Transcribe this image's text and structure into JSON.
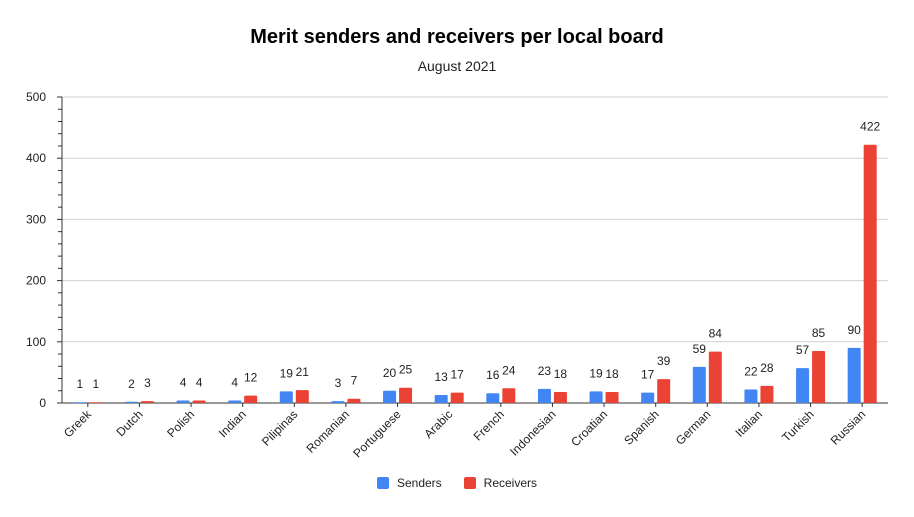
{
  "chart_data": {
    "type": "bar",
    "title": "Merit senders and receivers per local board",
    "subtitle": "August 2021",
    "categories": [
      "Greek",
      "Dutch",
      "Polish",
      "Indian",
      "Pilipinas",
      "Romanian",
      "Portuguese",
      "Arabic",
      "French",
      "Indonesian",
      "Croatian",
      "Spanish",
      "German",
      "Italian",
      "Turkish",
      "Russian"
    ],
    "series": [
      {
        "name": "Senders",
        "color": "#4285f4",
        "values": [
          1,
          2,
          4,
          4,
          19,
          3,
          20,
          13,
          16,
          23,
          19,
          17,
          59,
          22,
          57,
          90
        ]
      },
      {
        "name": "Receivers",
        "color": "#ea4335",
        "values": [
          1,
          3,
          4,
          12,
          21,
          7,
          25,
          17,
          24,
          18,
          18,
          39,
          84,
          28,
          85,
          422
        ]
      }
    ],
    "ylim": [
      0,
      500
    ],
    "yticks": [
      0,
      100,
      200,
      300,
      400,
      500
    ],
    "grid": true,
    "legend_position": "bottom"
  }
}
